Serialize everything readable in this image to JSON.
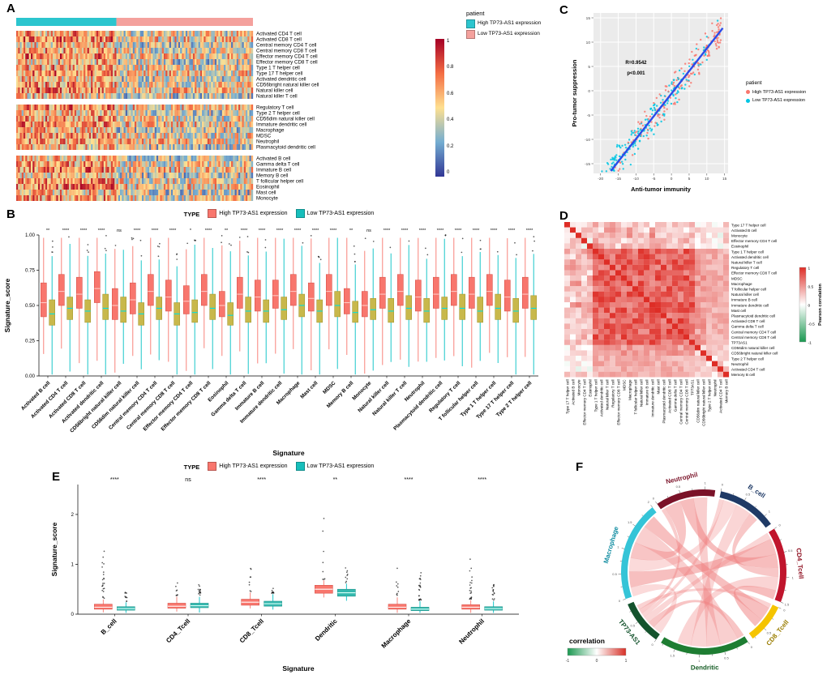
{
  "panel_labels": {
    "a": "A",
    "b": "B",
    "c": "C",
    "d": "D",
    "e": "E",
    "f": "F"
  },
  "chart_data": [
    {
      "id": "A",
      "type": "heatmap",
      "annotation_title": "patient",
      "legend_items": [
        {
          "label": "High TP73-AS1 expression",
          "color": "#2cc5ce"
        },
        {
          "label": "Low TP73-AS1 expression",
          "color": "#f4a19d"
        }
      ],
      "colorbar_ticks": [
        "1",
        "0.8",
        "0.6",
        "0.4",
        "0.2",
        "0"
      ],
      "n_samples": 130,
      "high_fraction": 0.42,
      "value_range": [
        0,
        1
      ],
      "row_groups": [
        [
          "Activated CD4 T cell",
          "Activated CD8 T cell",
          "Central memory CD4 T cell",
          "Central memory CD8 T cell",
          "Effector memory CD4 T cell",
          "Effector memory CD8 T cell",
          "Type 1 T helper cell",
          "Type 17 T helper cell",
          "Activated dendritic cell",
          "CD56bright natural killer cell",
          "Natural killer cell",
          "Natural killer T cell"
        ],
        [
          "Regulatory T cell",
          "Type 2 T helper cell",
          "CD56dim natural killer cell",
          "Immature dendritic cell",
          "Macrophage",
          "MDSC",
          "Neutrophil",
          "Plasmacytoid dendritic cell"
        ],
        [
          "Activated B cell",
          "Gamma delta T cell",
          "Immature B cell",
          "Memory B cell",
          "T follicular helper cell",
          "Eosinophil",
          "Mast cell",
          "Monocyte"
        ]
      ]
    },
    {
      "id": "B",
      "type": "boxplot",
      "legend_title": "TYPE",
      "legend_items": [
        {
          "label": "High TP73-AS1 expression",
          "color": "#f8766d"
        },
        {
          "label": "Low TP73-AS1 expression",
          "color": "#17bebb"
        }
      ],
      "xlabel": "Signature",
      "ylabel": "Signature_score",
      "ylim": [
        0,
        1
      ],
      "yticks": [
        "0.00",
        "0.25",
        "0.50",
        "0.75",
        "1.00"
      ],
      "categories": [
        "Activated B cell",
        "Activated CD4 T cell",
        "Activated CD8 T cell",
        "Activated dendritic cell",
        "CD56bright natural killer cell",
        "CD56dim natural killer cell",
        "Central memory CD4 T cell",
        "Central memory CD8 T cell",
        "Effector memory CD4 T cell",
        "Effector memory CD8 T cell",
        "Eosinophil",
        "Gamma delta T cell",
        "Immature B cell",
        "Immature dendritic cell",
        "Macrophage",
        "Mast cell",
        "MDSC",
        "Memory B cell",
        "Monocyte",
        "Natural killer cell",
        "Natural killer T cell",
        "Neutrophil",
        "Plasmacytoid dendritic cell",
        "Regulatory T cell",
        "T follicular helper cell",
        "Type 1 T helper cell",
        "Type 17 T helper cell",
        "Type 2 T helper cell"
      ],
      "significance": [
        "**",
        "****",
        "****",
        "****",
        "ns",
        "****",
        "****",
        "****",
        "*",
        "****",
        "**",
        "****",
        "****",
        "****",
        "****",
        "****",
        "****",
        "**",
        "ns",
        "****",
        "****",
        "****",
        "****",
        "****",
        "****",
        "****",
        "****",
        "****"
      ],
      "high": [
        [
          0.42,
          0.52,
          0.66
        ],
        [
          0.5,
          0.6,
          0.72
        ],
        [
          0.48,
          0.58,
          0.7
        ],
        [
          0.52,
          0.62,
          0.74
        ],
        [
          0.4,
          0.5,
          0.62
        ],
        [
          0.44,
          0.54,
          0.66
        ],
        [
          0.5,
          0.6,
          0.72
        ],
        [
          0.46,
          0.56,
          0.68
        ],
        [
          0.44,
          0.53,
          0.64
        ],
        [
          0.5,
          0.6,
          0.72
        ],
        [
          0.42,
          0.5,
          0.6
        ],
        [
          0.48,
          0.58,
          0.7
        ],
        [
          0.46,
          0.56,
          0.68
        ],
        [
          0.48,
          0.57,
          0.68
        ],
        [
          0.5,
          0.6,
          0.72
        ],
        [
          0.46,
          0.55,
          0.66
        ],
        [
          0.5,
          0.6,
          0.72
        ],
        [
          0.44,
          0.52,
          0.62
        ],
        [
          0.42,
          0.5,
          0.6
        ],
        [
          0.48,
          0.58,
          0.7
        ],
        [
          0.5,
          0.6,
          0.72
        ],
        [
          0.46,
          0.56,
          0.68
        ],
        [
          0.48,
          0.58,
          0.7
        ],
        [
          0.5,
          0.6,
          0.72
        ],
        [
          0.48,
          0.58,
          0.7
        ],
        [
          0.5,
          0.6,
          0.72
        ],
        [
          0.46,
          0.56,
          0.68
        ],
        [
          0.48,
          0.58,
          0.7
        ]
      ],
      "low": [
        [
          0.36,
          0.44,
          0.54
        ],
        [
          0.4,
          0.48,
          0.56
        ],
        [
          0.38,
          0.46,
          0.54
        ],
        [
          0.4,
          0.48,
          0.58
        ],
        [
          0.38,
          0.46,
          0.56
        ],
        [
          0.36,
          0.44,
          0.52
        ],
        [
          0.4,
          0.48,
          0.56
        ],
        [
          0.36,
          0.44,
          0.52
        ],
        [
          0.38,
          0.45,
          0.54
        ],
        [
          0.4,
          0.48,
          0.58
        ],
        [
          0.36,
          0.43,
          0.52
        ],
        [
          0.38,
          0.46,
          0.56
        ],
        [
          0.38,
          0.46,
          0.54
        ],
        [
          0.4,
          0.47,
          0.56
        ],
        [
          0.42,
          0.5,
          0.58
        ],
        [
          0.38,
          0.46,
          0.54
        ],
        [
          0.42,
          0.5,
          0.6
        ],
        [
          0.38,
          0.45,
          0.53
        ],
        [
          0.4,
          0.47,
          0.55
        ],
        [
          0.38,
          0.46,
          0.55
        ],
        [
          0.4,
          0.48,
          0.57
        ],
        [
          0.38,
          0.46,
          0.55
        ],
        [
          0.4,
          0.48,
          0.56
        ],
        [
          0.4,
          0.48,
          0.58
        ],
        [
          0.38,
          0.46,
          0.56
        ],
        [
          0.4,
          0.48,
          0.58
        ],
        [
          0.38,
          0.46,
          0.55
        ],
        [
          0.4,
          0.48,
          0.57
        ]
      ]
    },
    {
      "id": "C",
      "type": "scatter",
      "xlabel": "Anti-tumor immunity",
      "ylabel": "Pro-tumor suppression",
      "annotation": {
        "r_label": "R=0.9542",
        "p_label": "p<0.001"
      },
      "legend_title": "patient",
      "legend_items": [
        {
          "label": "High TP73-AS1 expression",
          "color": "#f8766d"
        },
        {
          "label": "Low TP73-AS1 expression",
          "color": "#00c5e3"
        }
      ],
      "xlim": [
        -22,
        16
      ],
      "ylim": [
        -17,
        16
      ],
      "xticks": [
        -20,
        -15,
        -10,
        -5,
        0,
        5,
        10,
        15
      ],
      "yticks": [
        -15,
        -10,
        -5,
        0,
        5,
        10,
        15
      ],
      "n_points": 390,
      "fit": {
        "slope": 0.93,
        "intercept": -0.6,
        "color": "#2b4be8"
      }
    },
    {
      "id": "D",
      "type": "correlation-heatmap",
      "legend_title": "Pearson correlation",
      "legend_ticks": [
        "1",
        "0.5",
        "0",
        "-0.5",
        "-1"
      ],
      "positive_color": "#de2d26",
      "negative_color": "#1a9850",
      "labels": [
        "Type 17 T helper cell",
        "Activated B cell",
        "Monocyte",
        "Effector memory CD4 T cell",
        "Eosinophil",
        "Type 1 T helper cell",
        "Activated dendritic cell",
        "Natural killer T cell",
        "Regulatory T cell",
        "Effector memory CD8 T cell",
        "MDSC",
        "Macrophage",
        "T follicular helper cell",
        "Natural killer cell",
        "Immature B cell",
        "Immature dendritic cell",
        "Mast cell",
        "Plasmacytoid dendritic cell",
        "Activated CD8 T cell",
        "Gamma delta T cell",
        "Central memory CD4 T cell",
        "Central memory CD8 T cell",
        "TP73AS1",
        "CD56dim natural killer cell",
        "CD56bright natural killer cell",
        "Type 2 T helper cell",
        "Neutrophil",
        "Activated CD4 T cell",
        "Memory B cell"
      ]
    },
    {
      "id": "E",
      "type": "boxplot",
      "legend_title": "TYPE",
      "legend_items": [
        {
          "label": "High TP73-AS1 expression",
          "color": "#f8766d"
        },
        {
          "label": "Low TP73-AS1 expression",
          "color": "#17bebb"
        }
      ],
      "xlabel": "Signature",
      "ylabel": "Signature_score",
      "ylim": [
        0,
        2.6
      ],
      "yticks": [
        "0",
        "1",
        "2"
      ],
      "categories": [
        "B_cell",
        "CD4_Tcell",
        "CD8_Tcell",
        "Dendritic",
        "Macrophage",
        "Neutrophil"
      ],
      "significance": [
        "****",
        "ns",
        "****",
        "**",
        "****",
        "****"
      ],
      "high": [
        [
          0.1,
          0.14,
          0.2
        ],
        [
          0.12,
          0.16,
          0.22
        ],
        [
          0.18,
          0.24,
          0.3
        ],
        [
          0.42,
          0.5,
          0.58
        ],
        [
          0.1,
          0.14,
          0.2
        ],
        [
          0.1,
          0.14,
          0.19
        ]
      ],
      "low": [
        [
          0.08,
          0.11,
          0.15
        ],
        [
          0.13,
          0.17,
          0.22
        ],
        [
          0.16,
          0.21,
          0.26
        ],
        [
          0.36,
          0.43,
          0.5
        ],
        [
          0.07,
          0.1,
          0.14
        ],
        [
          0.08,
          0.11,
          0.15
        ]
      ],
      "out_max_high": [
        1.35,
        0.95,
        1.15,
        2.35,
        1.05,
        1.25
      ],
      "out_max_low": [
        0.55,
        0.62,
        0.55,
        1.05,
        0.85,
        0.6
      ]
    },
    {
      "id": "F",
      "type": "chord",
      "segments": [
        {
          "name": "B_cell",
          "value": 1.2,
          "color": "#1f3a66",
          "label_color": "#1f3a66"
        },
        {
          "name": "CD4_Tcell",
          "value": 1.5,
          "color": "#c0152d",
          "label_color": "#8f1021"
        },
        {
          "name": "CD8_Tcell",
          "value": 0.8,
          "color": "#f5c400",
          "label_color": "#9a7d00"
        },
        {
          "name": "Dendritic",
          "value": 1.8,
          "color": "#1e7d32",
          "label_color": "#155c24"
        },
        {
          "name": "TP73-AS1",
          "value": 0.9,
          "color": "#14532d",
          "label_color": "#14532d"
        },
        {
          "name": "Macrophage",
          "value": 2.0,
          "color": "#35c4d7",
          "label_color": "#0e8ba0"
        },
        {
          "name": "Neutrophil",
          "value": 1.2,
          "color": "#7a1228",
          "label_color": "#7a1228"
        }
      ],
      "chords": [
        [
          "TP73-AS1",
          "Macrophage",
          0.2
        ],
        [
          "TP73-AS1",
          "Dendritic",
          0.15
        ],
        [
          "TP73-AS1",
          "CD4_Tcell",
          0.15
        ],
        [
          "TP73-AS1",
          "B_cell",
          0.1
        ],
        [
          "TP73-AS1",
          "Neutrophil",
          0.1
        ],
        [
          "TP73-AS1",
          "CD8_Tcell",
          0.1
        ],
        [
          "Macrophage",
          "CD4_Tcell",
          0.35
        ],
        [
          "Macrophage",
          "B_cell",
          0.3
        ],
        [
          "Macrophage",
          "Neutrophil",
          0.35
        ],
        [
          "Macrophage",
          "Dendritic",
          0.4
        ],
        [
          "Macrophage",
          "CD8_Tcell",
          0.3
        ],
        [
          "Neutrophil",
          "CD4_Tcell",
          0.3
        ],
        [
          "Neutrophil",
          "Dendritic",
          0.3
        ],
        [
          "B_cell",
          "Dendritic",
          0.35
        ],
        [
          "B_cell",
          "CD4_Tcell",
          0.2
        ],
        [
          "CD4_Tcell",
          "Dendritic",
          0.3
        ],
        [
          "CD4_Tcell",
          "CD8_Tcell",
          0.2
        ]
      ],
      "ribbon_color": "#f08080",
      "legend": {
        "title": "correlation",
        "ticks": [
          "-1",
          "0",
          "1"
        ],
        "gradient": [
          "#1a9850",
          "#ffffff",
          "#d73027"
        ]
      }
    }
  ]
}
